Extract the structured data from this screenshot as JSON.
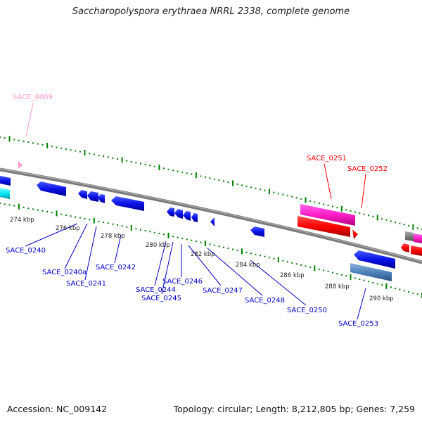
{
  "title": "Saccharopolyspora erythraea NRRL 2338, complete genome",
  "footer": {
    "accession": "Accession: NC_009142",
    "summary": "Topology: circular; Length: 8,212,805 bp; Genes: 7,259"
  },
  "colors": {
    "backbone": "#7f7f7f",
    "forward_gene": "#ff00ff",
    "reverse_gene": "#0000ff",
    "rrna_red": "#ff0000",
    "pseudo_pink": "#ff99cc",
    "tick": "#008000"
  },
  "scale_labels": [
    "274 kbp",
    "276 kbp",
    "278 kbp",
    "280 kbp",
    "282 kbp",
    "284 kbp",
    "286 kbp",
    "288 kbp",
    "290 kbp"
  ],
  "gene_labels": {
    "top": [
      {
        "text": "SACE_8009",
        "color": "#ff99cc"
      },
      {
        "text": "SACE_0251",
        "color": "#ff0000"
      },
      {
        "text": "SACE_0252",
        "color": "#ff0000"
      }
    ],
    "bottom": [
      {
        "text": "SACE_0240"
      },
      {
        "text": "SACE_0240a"
      },
      {
        "text": "SACE_0241"
      },
      {
        "text": "SACE_0242"
      },
      {
        "text": "SACE_0244"
      },
      {
        "text": "SACE_0245"
      },
      {
        "text": "SACE_0246"
      },
      {
        "text": "SACE_0247"
      },
      {
        "text": "SACE_0248"
      },
      {
        "text": "SACE_0250"
      },
      {
        "text": "SACE_0253"
      }
    ]
  }
}
